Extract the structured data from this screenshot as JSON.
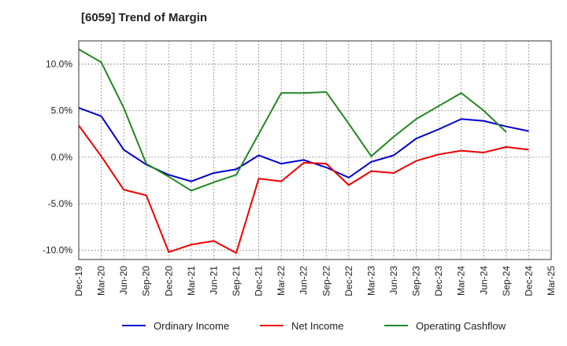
{
  "chart_data": {
    "type": "line",
    "title": "[6059]  Trend of Margin",
    "x": [
      "Dec-19",
      "Mar-20",
      "Jun-20",
      "Sep-20",
      "Dec-20",
      "Mar-21",
      "Jun-21",
      "Sep-21",
      "Dec-21",
      "Mar-22",
      "Jun-22",
      "Sep-22",
      "Dec-22",
      "Mar-23",
      "Jun-23",
      "Sep-23",
      "Dec-23",
      "Mar-24",
      "Jun-24",
      "Sep-24",
      "Dec-24",
      "Mar-25"
    ],
    "y_ticks": [
      10,
      5,
      0,
      -5,
      -10
    ],
    "y_tick_labels": [
      "10.0%",
      "5.0%",
      "0.0%",
      "-5.0%",
      "-10.0%"
    ],
    "ylim": [
      -11,
      12.5
    ],
    "grid": true,
    "legend_position": "bottom",
    "series": [
      {
        "name": "Ordinary Income",
        "color": "#0000cc",
        "values": [
          5.3,
          4.4,
          0.8,
          -0.8,
          -1.9,
          -2.6,
          -1.7,
          -1.3,
          0.2,
          -0.7,
          -0.3,
          -1.1,
          -2.2,
          -0.5,
          0.2,
          2.0,
          3.0,
          4.1,
          3.9,
          3.3,
          2.8,
          null
        ]
      },
      {
        "name": "Net Income",
        "color": "#ee0000",
        "values": [
          3.4,
          0.1,
          -3.5,
          -4.1,
          -10.2,
          -9.4,
          -9.0,
          -10.3,
          -2.3,
          -2.6,
          -0.6,
          -0.7,
          -3.0,
          -1.5,
          -1.7,
          -0.4,
          0.3,
          0.7,
          0.5,
          1.1,
          0.8,
          null
        ]
      },
      {
        "name": "Operating Cashflow",
        "color": "#228822",
        "values": [
          11.6,
          10.2,
          5.3,
          -0.7,
          -2.1,
          -3.6,
          -2.7,
          -1.9,
          2.5,
          6.9,
          6.9,
          7.0,
          3.6,
          0.1,
          2.2,
          4.1,
          5.5,
          6.9,
          5.0,
          2.7,
          null,
          null
        ]
      }
    ]
  }
}
